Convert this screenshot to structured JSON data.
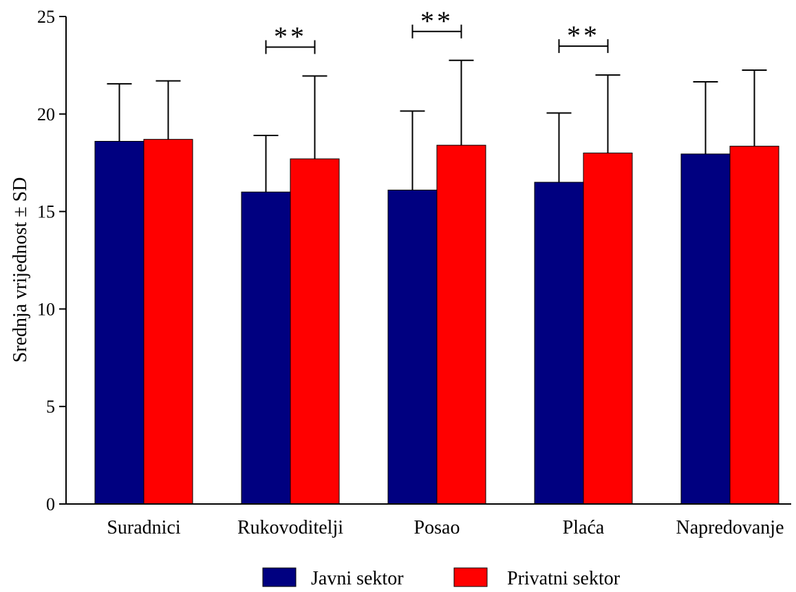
{
  "chart_data": {
    "type": "bar",
    "title": "",
    "xlabel": "",
    "ylabel": "Srednja vrijednost ± SD",
    "ylim": [
      0,
      25
    ],
    "yticks": [
      0,
      5,
      10,
      15,
      20,
      25
    ],
    "grid": false,
    "legend_position": "bottom-center",
    "categories": [
      "Suradnici",
      "Rukovoditelji",
      "Posao",
      "Plaća",
      "Napredovanje"
    ],
    "series": [
      {
        "name": "Javni sektor",
        "color": "#000080",
        "values": [
          18.6,
          16.0,
          16.1,
          16.5,
          17.95
        ],
        "sd": [
          2.95,
          2.9,
          4.05,
          3.55,
          3.7
        ]
      },
      {
        "name": "Privatni sektor",
        "color": "#ff0000",
        "values": [
          18.7,
          17.7,
          18.4,
          18.0,
          18.35
        ],
        "sd": [
          3.0,
          4.25,
          4.35,
          4.0,
          3.9
        ]
      }
    ],
    "annotations": [
      {
        "category": "Rukovoditelji",
        "text": "**"
      },
      {
        "category": "Posao",
        "text": "**"
      },
      {
        "category": "Plaća",
        "text": "**"
      }
    ]
  }
}
